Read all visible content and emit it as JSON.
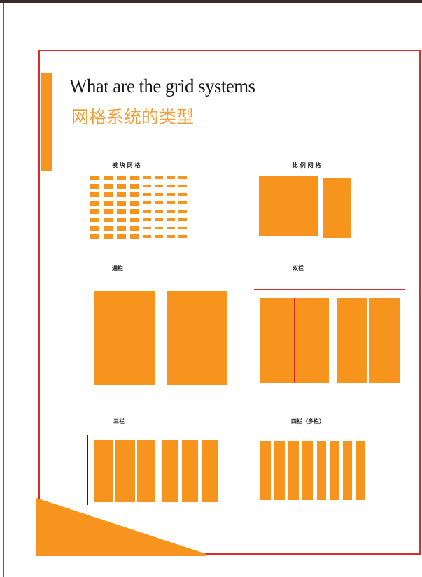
{
  "header": {
    "title_en": "What are the grid systems",
    "title_cn": "网格系统的类型"
  },
  "sections": [
    {
      "label": "模 块 网 格"
    },
    {
      "label": "比 例 网 格"
    },
    {
      "label": "通栏"
    },
    {
      "label": "双栏"
    },
    {
      "label": "三栏"
    },
    {
      "label": "四栏（多栏）"
    }
  ],
  "colors": {
    "accent": "#f7941d",
    "frame": "#e02a2a",
    "title_cn": "#f0a23a"
  }
}
